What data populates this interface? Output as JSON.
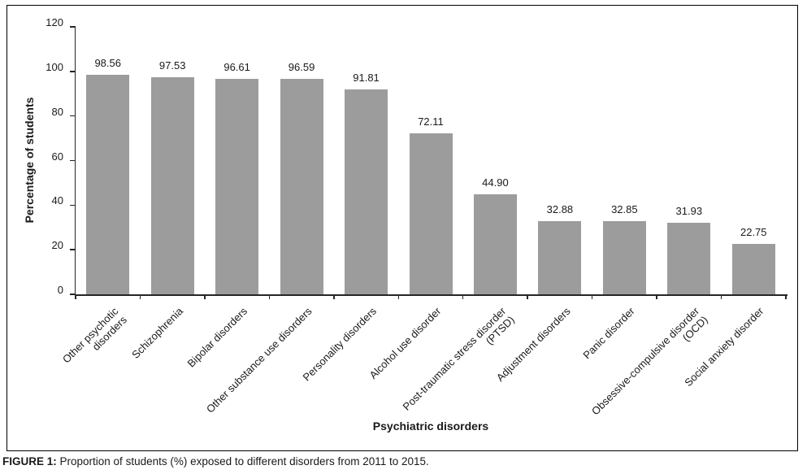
{
  "figure": {
    "caption_prefix": "FIGURE 1:",
    "caption_text": " Proportion of students (%) exposed to different disorders from 2011 to 2015."
  },
  "chart_data": {
    "type": "bar",
    "title": "",
    "xlabel": "Psychiatric disorders",
    "ylabel": "Percentage of students",
    "ylim": [
      0,
      120
    ],
    "yticks": [
      0,
      20,
      40,
      60,
      80,
      100,
      120
    ],
    "grid": false,
    "legend_position": "none",
    "bar_color": "#9c9c9c",
    "axis_color": "#262626",
    "categories": [
      "Other psychotic disorders",
      "Schizophrenia",
      "Bipolar disorders",
      "Other substance use disorders",
      "Personality disorders",
      "Alcohol use disorder",
      "Post-traumatic stress disorder\n(PTSD)",
      "Adjustment disorders",
      "Panic disorder",
      "Obsessive-compulsive disorder\n(OCD)",
      "Social anxiety disorder"
    ],
    "values": [
      98.56,
      97.53,
      96.61,
      96.59,
      91.81,
      72.11,
      44.9,
      32.88,
      32.85,
      31.93,
      22.75
    ],
    "value_labels": [
      "98.56",
      "97.53",
      "96.61",
      "96.59",
      "91.81",
      "72.11",
      "44.90",
      "32.88",
      "32.85",
      "31.93",
      "22.75"
    ]
  }
}
